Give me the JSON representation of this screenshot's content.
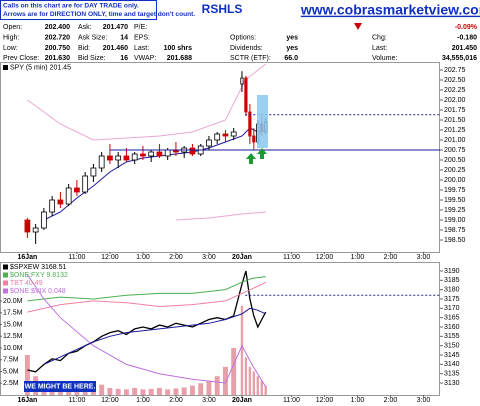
{
  "header": {
    "note_lines": [
      "Calls on this chart are for DAY TRADE only.",
      "Arrows are for DIRECTION ONLY, time and target don't count."
    ],
    "symbol": "RSHLS",
    "site": "www.cobrasmarketview.com"
  },
  "quote": {
    "columns": [
      [
        {
          "label": "Open:",
          "value": "202.400"
        },
        {
          "label": "High:",
          "value": "202.720"
        },
        {
          "label": "Low:",
          "value": "200.750"
        },
        {
          "label": "Prev Close:",
          "value": "201.630"
        }
      ],
      [
        {
          "label": "Ask:",
          "value": "201.470"
        },
        {
          "label": "Ask Size:",
          "value": "14"
        },
        {
          "label": "Bid:",
          "value": "201.460"
        },
        {
          "label": "Bid Size:",
          "value": "16"
        }
      ],
      [
        {
          "label": "P/E:"
        },
        {
          "label": "EPS:"
        },
        {
          "label": "Last:",
          "value": "100 shrs"
        },
        {
          "label": "VWAP:",
          "value": "201.688"
        }
      ],
      [
        {
          "label": "Options:",
          "value": "yes"
        },
        {
          "label": "Dividends:",
          "value": "yes"
        },
        {
          "label": "SCTR (ETF):",
          "value": "66.0"
        }
      ],
      [
        {
          "value": "-0.09%",
          "color": "#cc0000",
          "direction": "down"
        },
        {
          "label": "Chg:",
          "value": "-0.180"
        },
        {
          "label": "Last:",
          "value": "201.450"
        },
        {
          "label": "Volume:",
          "value": "34,555,016"
        }
      ]
    ]
  },
  "chart_data": [
    {
      "type": "candlestick",
      "xlim": [
        -0.83,
        12.5
      ],
      "ylim": [
        198.2,
        202.95
      ],
      "grid": false,
      "xticks": [
        {
          "value": 0,
          "label": "16Jan"
        },
        {
          "value": 1.5,
          "label": "11:00"
        },
        {
          "value": 2.5,
          "label": "12:00"
        },
        {
          "value": 3.5,
          "label": "1:00"
        },
        {
          "value": 4.5,
          "label": "2:00"
        },
        {
          "value": 5.5,
          "label": "3:00"
        },
        {
          "value": 6.5,
          "label": "20Jan"
        },
        {
          "value": 8,
          "label": "11:00"
        },
        {
          "value": 9,
          "label": "12:00"
        },
        {
          "value": 10,
          "label": "1:00"
        },
        {
          "value": 11,
          "label": "2:00"
        },
        {
          "value": 12,
          "label": "3:00"
        }
      ],
      "yticks": [
        {
          "value": 198.5,
          "label": "198.50"
        },
        {
          "value": 198.75,
          "label": "198.75"
        },
        {
          "value": 199,
          "label": "199.00"
        },
        {
          "value": 199.25,
          "label": "199.25"
        },
        {
          "value": 199.5,
          "label": "199.50"
        },
        {
          "value": 199.75,
          "label": "199.75"
        },
        {
          "value": 200,
          "label": "200.00"
        },
        {
          "value": 200.25,
          "label": "200.25"
        },
        {
          "value": 200.5,
          "label": "200.50"
        },
        {
          "value": 200.75,
          "label": "200.75"
        },
        {
          "value": 201,
          "label": "201.00"
        },
        {
          "value": 201.25,
          "label": "201.25"
        },
        {
          "value": 201.5,
          "label": "201.50"
        },
        {
          "value": 201.75,
          "label": "201.75"
        },
        {
          "value": 202,
          "label": "202.00"
        },
        {
          "value": 202.25,
          "label": "202.25"
        },
        {
          "value": 202.5,
          "label": "202.50"
        },
        {
          "value": 202.75,
          "label": "202.75"
        }
      ],
      "candles": {
        "name": "SPY (5 min) 201.45",
        "up_color": "#000000",
        "down_color": "#cc0000",
        "x": [
          0,
          0.25,
          0.5,
          0.75,
          1,
          1.25,
          1.5,
          1.75,
          2,
          2.25,
          2.5,
          2.75,
          3,
          3.25,
          3.5,
          3.75,
          4,
          4.25,
          4.5,
          4.75,
          5,
          5.25,
          5.5,
          5.75,
          6,
          6.25,
          6.5,
          6.62,
          6.74,
          6.86,
          6.98,
          7.1,
          7.22
        ],
        "open": [
          199,
          198.7,
          198.8,
          199.2,
          199.5,
          199.4,
          199.8,
          199.7,
          200.1,
          200.3,
          200.6,
          200.5,
          200.6,
          200.5,
          200.65,
          200.6,
          200.7,
          200.6,
          200.75,
          200.7,
          200.8,
          200.65,
          200.85,
          201,
          201.15,
          201.1,
          202.4,
          202.55,
          201.7,
          201.1,
          200.95,
          201.4,
          201.2
        ],
        "high": [
          199.05,
          198.9,
          199.3,
          199.6,
          199.7,
          199.9,
          200,
          200.2,
          200.4,
          200.7,
          200.9,
          200.7,
          200.8,
          200.7,
          200.85,
          200.75,
          200.9,
          200.8,
          200.95,
          200.85,
          200.9,
          200.9,
          201.1,
          201.2,
          201.25,
          201.3,
          202.72,
          202.6,
          201.9,
          201.3,
          201.5,
          201.6,
          201.55
        ],
        "low": [
          198.55,
          198.4,
          198.75,
          199.1,
          199.3,
          199.35,
          199.6,
          199.65,
          199.95,
          200.2,
          200.4,
          200.3,
          200.45,
          200.4,
          200.5,
          200.45,
          200.55,
          200.5,
          200.6,
          200.55,
          200.6,
          200.6,
          200.75,
          200.9,
          200.95,
          201,
          202.2,
          201.6,
          200.9,
          200.75,
          200.9,
          201.1,
          201.15
        ],
        "close": [
          198.7,
          198.8,
          199.2,
          199.5,
          199.4,
          199.8,
          199.7,
          200.1,
          200.3,
          200.6,
          200.5,
          200.6,
          200.5,
          200.65,
          200.6,
          200.7,
          200.6,
          200.75,
          200.7,
          200.8,
          200.65,
          200.85,
          201,
          201.15,
          201.1,
          201.2,
          202.55,
          201.7,
          201.1,
          200.95,
          201.4,
          201.2,
          201.45
        ]
      },
      "series": [
        {
          "color": "#1a1a9a",
          "x": [
            0.5,
            1,
            1.5,
            2,
            2.5,
            3,
            3.5,
            4,
            4.5,
            5,
            5.5,
            6,
            6.5,
            6.74,
            6.98,
            7.22
          ],
          "values": [
            199,
            199.2,
            199.55,
            199.85,
            200.2,
            200.45,
            200.55,
            200.6,
            200.65,
            200.7,
            200.8,
            200.95,
            201.1,
            201.3,
            201.2,
            201.25
          ]
        },
        {
          "color": "#e8a8d0",
          "x": [
            0,
            1,
            2,
            3,
            4,
            5,
            6,
            6.6,
            7.22
          ],
          "values": [
            202,
            201.4,
            201,
            201.05,
            201.1,
            201.2,
            201.5,
            202.5,
            202.9
          ]
        },
        {
          "color": "#e8a8d0",
          "x": [
            4.5,
            5.5,
            6.5,
            7.22
          ],
          "values": [
            199,
            199.05,
            199.15,
            199.2
          ]
        }
      ],
      "hlines": [
        {
          "value": 200.75,
          "x": [
            2.5,
            12.5
          ],
          "color": "#1a1a9a",
          "dashed": false
        },
        {
          "value": 201.63,
          "x": [
            6.6,
            12.5
          ],
          "color": "#1a1a9a",
          "dashed": true
        }
      ]
    },
    {
      "type": "line",
      "xlim": [
        -0.83,
        12.5
      ],
      "ylim": [
        3123.6,
        3194.8
      ],
      "grid": false,
      "xticks": [
        {
          "value": 0,
          "label": "16Jan"
        },
        {
          "value": 1.5,
          "label": "11:00"
        },
        {
          "value": 2.5,
          "label": "12:00"
        },
        {
          "value": 3.5,
          "label": "1:00"
        },
        {
          "value": 4.5,
          "label": "2:00"
        },
        {
          "value": 5.5,
          "label": "3:00"
        },
        {
          "value": 6.5,
          "label": "20Jan"
        },
        {
          "value": 8,
          "label": "11:00"
        },
        {
          "value": 9,
          "label": "12:00"
        },
        {
          "value": 10,
          "label": "1:00"
        },
        {
          "value": 11,
          "label": "2:00"
        },
        {
          "value": 12,
          "label": "3:00"
        }
      ],
      "yticks": [
        3130,
        3135,
        3140,
        3145,
        3150,
        3155,
        3160,
        3165,
        3170,
        3175,
        3180,
        3185,
        3190
      ],
      "series": [
        {
          "name": "$SPXEW 3168.51",
          "color": "#000000",
          "x": [
            0,
            0.25,
            0.5,
            0.75,
            1,
            1.25,
            1.5,
            1.75,
            2,
            2.25,
            2.5,
            2.75,
            3,
            3.25,
            3.5,
            3.75,
            4,
            4.25,
            4.5,
            4.75,
            5,
            5.25,
            5.5,
            5.75,
            6,
            6.25,
            6.5,
            6.62,
            6.74,
            6.86,
            6.98,
            7.1,
            7.22
          ],
          "values": [
            3137,
            3136,
            3140,
            3143,
            3142,
            3146,
            3147,
            3150,
            3152,
            3155,
            3157,
            3158,
            3156,
            3159,
            3160,
            3159,
            3161,
            3160,
            3162,
            3161,
            3160,
            3162,
            3164,
            3165,
            3164,
            3166,
            3183,
            3190,
            3175,
            3166,
            3160,
            3164,
            3168
          ]
        },
        {
          "name": "$ONE:FXY 9.8132",
          "color": "#4caf50",
          "x": [
            0,
            1,
            2,
            3,
            4,
            5,
            6,
            6.5,
            6.8,
            7.22
          ],
          "values": [
            3174,
            3176,
            3175,
            3177,
            3178,
            3178,
            3180,
            3184,
            3186,
            3187
          ]
        },
        {
          "name": "TBT 40.49",
          "color": "#f080a0",
          "x": [
            0,
            1,
            2,
            3,
            4,
            5,
            6,
            6.5,
            7,
            7.22
          ],
          "values": [
            3168,
            3172,
            3174,
            3173,
            3171,
            3172,
            3174,
            3178,
            3182,
            3184
          ]
        },
        {
          "name": "$ONE:$VIX 0.048",
          "color": "#c070e0",
          "x": [
            0,
            0.5,
            1,
            2,
            3,
            4,
            5,
            6,
            6.5,
            6.8,
            7.22
          ],
          "values": [
            3188,
            3175,
            3165,
            3150,
            3140,
            3135,
            3132,
            3130,
            3150,
            3140,
            3128
          ]
        },
        {
          "color": "#1a1a9a",
          "x": [
            0.5,
            1,
            1.5,
            2,
            2.5,
            3,
            3.5,
            4,
            4.5,
            5,
            5.5,
            6,
            6.5,
            6.74,
            6.98,
            7.22
          ],
          "values": [
            3140,
            3144,
            3148,
            3152,
            3155,
            3157,
            3158,
            3159,
            3160,
            3161,
            3162,
            3164,
            3167,
            3170,
            3169,
            3167
          ]
        }
      ],
      "volume": {
        "color": "#e8a0a8",
        "lim": [
          0,
          28300000
        ],
        "ticks": [
          {
            "value": 2500000,
            "label": "2.5M"
          },
          {
            "value": 5000000,
            "label": "5.0M"
          },
          {
            "value": 7500000,
            "label": "7.5M"
          },
          {
            "value": 10000000,
            "label": "10.0M"
          },
          {
            "value": 12500000,
            "label": "12.5M"
          },
          {
            "value": 15000000,
            "label": "15.0M"
          },
          {
            "value": 17500000,
            "label": "17.5M"
          },
          {
            "value": 20000000,
            "label": "20.0M"
          }
        ],
        "x": [
          0,
          0.25,
          0.5,
          0.75,
          1,
          1.25,
          1.5,
          1.75,
          2,
          2.25,
          2.5,
          2.75,
          3,
          3.25,
          3.5,
          3.75,
          4,
          4.25,
          4.5,
          4.75,
          5,
          5.25,
          5.5,
          5.75,
          6,
          6.25,
          6.5,
          6.62,
          6.74,
          6.86,
          6.98,
          7.1,
          7.22
        ],
        "values": [
          8500000,
          4000000,
          3000000,
          2500000,
          2000000,
          2500000,
          2000000,
          1800000,
          2000000,
          2200000,
          1500000,
          1300000,
          1200000,
          1500000,
          1200000,
          1300000,
          1500000,
          1200000,
          1400000,
          1600000,
          2000000,
          2500000,
          3000000,
          4000000,
          6000000,
          10000000,
          19000000,
          8000000,
          6000000,
          5000000,
          4000000,
          3000000,
          2000000
        ]
      },
      "hlines": [
        {
          "value": 3177,
          "x": [
            6.6,
            12.5
          ],
          "color": "#1a1a9a",
          "dashed": true
        }
      ],
      "annotations": [
        "WE MIGHT BE HERE."
      ]
    }
  ]
}
